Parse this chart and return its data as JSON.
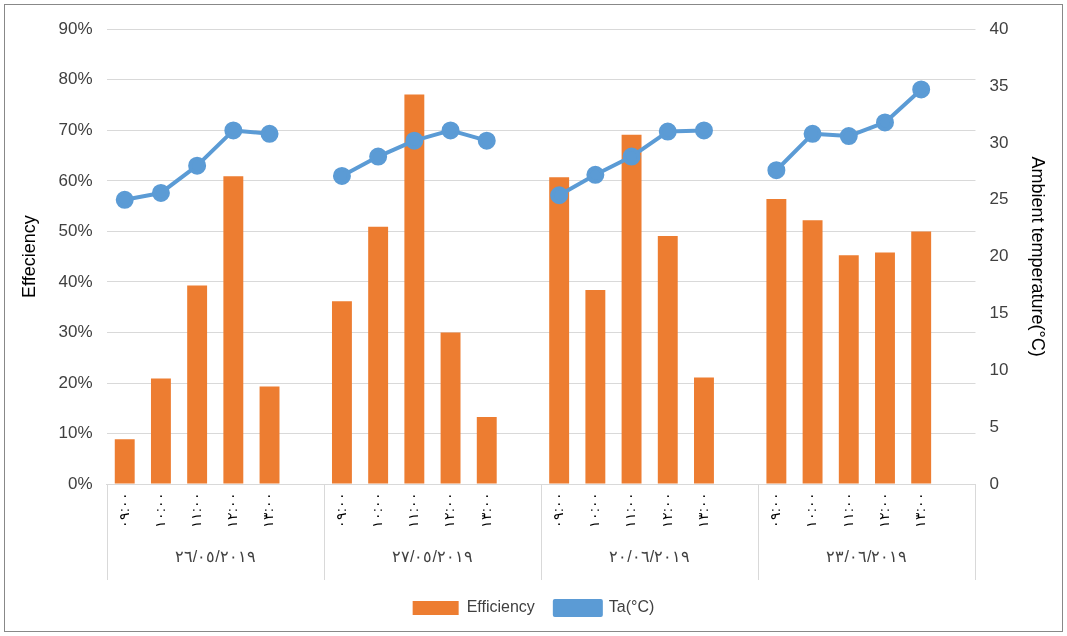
{
  "chart_data": {
    "type": "bar",
    "ylabel": "Effeciency",
    "y2label": "Ambient temperature(°C)",
    "categories": [
      "٠٩:٠٠",
      "١٠:٠٠",
      "١١:٠٠",
      "١٢:٠٠",
      "١٣:٠٠",
      null,
      "٠٩:٠٠",
      "١٠:٠٠",
      "١١:٠٠",
      "١٢:٠٠",
      "١٣:٠٠",
      null,
      "٠٩:٠٠",
      "١٠:٠٠",
      "١١:٠٠",
      "١٢:٠٠",
      "١٣:٠٠",
      null,
      "٠٩:٠٠",
      "١٠:٠٠",
      "١١:٠٠",
      "١٢:٠٠",
      "١٣:٠٠",
      null
    ],
    "series": [
      {
        "name": "Efficiency",
        "color": "#ed7d31",
        "values": [
          8.9,
          20.9,
          39.3,
          60.9,
          19.3,
          null,
          36.2,
          50.9,
          77.1,
          30,
          13.3,
          null,
          60.7,
          38.4,
          69.1,
          49.1,
          21.1,
          null,
          56.4,
          52.2,
          45.3,
          45.8,
          50,
          null
        ]
      },
      {
        "name": "Ta(°C)",
        "type": "line",
        "axis": "y2",
        "color": "#5b9bd5",
        "values": [
          25,
          25.6,
          28,
          31.1,
          30.8,
          null,
          27.1,
          28.8,
          30.2,
          31.1,
          30.2,
          null,
          25.4,
          27.2,
          28.8,
          31,
          31.1,
          null,
          27.6,
          30.8,
          30.6,
          31.8,
          34.7,
          null
        ]
      }
    ],
    "ylim": [
      0,
      90
    ],
    "yticks": [
      {
        "value": 0,
        "label": "0%"
      },
      {
        "value": 10,
        "label": "10%"
      },
      {
        "value": 20,
        "label": "20%"
      },
      {
        "value": 30,
        "label": "30%"
      },
      {
        "value": 40,
        "label": "40%"
      },
      {
        "value": 50,
        "label": "50%"
      },
      {
        "value": 60,
        "label": "60%"
      },
      {
        "value": 70,
        "label": "70%"
      },
      {
        "value": 80,
        "label": "80%"
      },
      {
        "value": 90,
        "label": "90%"
      }
    ],
    "y2lim": [
      0,
      40
    ],
    "y2ticks": [
      0,
      5,
      10,
      15,
      20,
      25,
      30,
      35,
      40
    ],
    "annotations": [
      "٢٦/٠٥/٢٠١٩",
      "٢٧/٠٥/٢٠١٩",
      "٢٠/٠٦/٢٠١٩",
      "٢٣/٠٦/٢٠١٩"
    ],
    "grid": "y",
    "legend": "bottom",
    "marker": "circle",
    "line_style": "solid"
  }
}
